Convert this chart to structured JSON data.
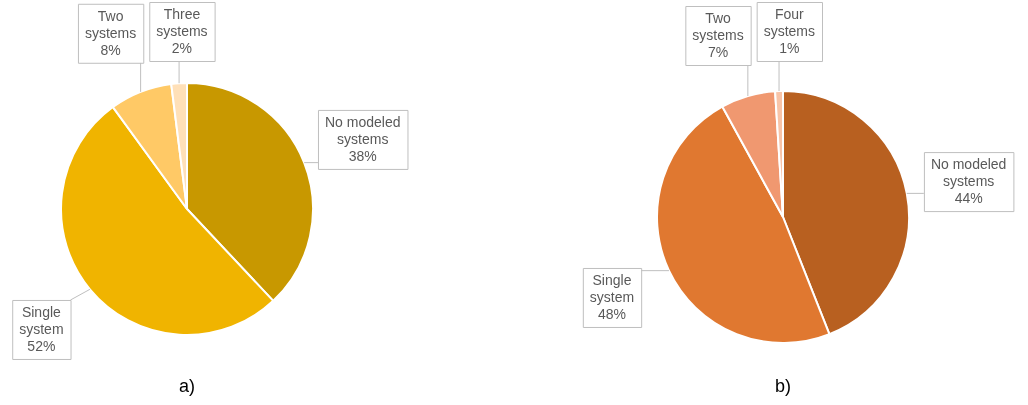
{
  "chart_data": [
    {
      "type": "pie",
      "categories": [
        "No modeled systems",
        "Single system",
        "Two systems",
        "Three systems"
      ],
      "values": [
        38,
        52,
        8,
        2
      ],
      "value_labels": [
        "38%",
        "52%",
        "8%",
        "2%"
      ],
      "colors": [
        "#c89800",
        "#f0b400",
        "#ffc966",
        "#ffe0b8"
      ],
      "annotations": [
        "a)"
      ],
      "legend": false
    },
    {
      "type": "pie",
      "categories": [
        "No modeled systems",
        "Single system",
        "Two systems",
        "Four systems"
      ],
      "values": [
        44,
        48,
        7,
        1
      ],
      "value_labels": [
        "44%",
        "48%",
        "7%",
        "1%"
      ],
      "colors": [
        "#b86020",
        "#e07830",
        "#f09870",
        "#f8c4a8"
      ],
      "annotations": [
        "b)"
      ],
      "legend": false
    }
  ]
}
